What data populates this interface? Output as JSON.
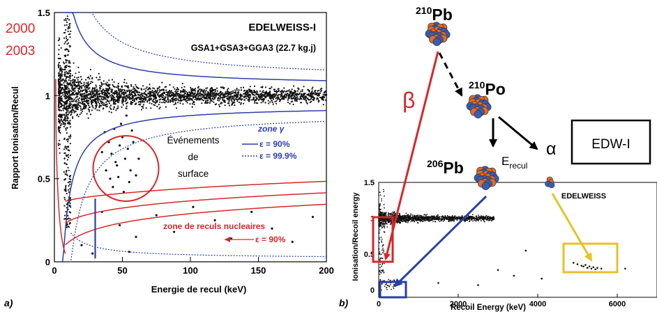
{
  "panel_labels": {
    "a": "a)",
    "b": "b)"
  },
  "colors": {
    "red": "#d62728",
    "blue": "#2b3fa8",
    "yellow": "#e6c229",
    "nucleus_orange": "#e06a2c",
    "nucleus_blue": "#3b5cb0"
  },
  "chart_data": [
    {
      "type": "scatter",
      "title": "EDELWEISS-I",
      "subtitle": "GSA1+GSA3+GGA3 (22.7 kg.j)",
      "xlabel": "Energie de recul (keV)",
      "ylabel": "Rapport Ionisation/Recul",
      "xlim": [
        0,
        200
      ],
      "ylim": [
        0,
        1.5
      ],
      "x_ticks": [
        0,
        50,
        100,
        150,
        200
      ],
      "x_tick_labels": [
        "0",
        "50",
        "100",
        "150",
        "200"
      ],
      "y_ticks": [
        0,
        0.5,
        1,
        1.5
      ],
      "y_tick_labels": [
        "0",
        "0.5",
        "1",
        "1.5"
      ],
      "years": [
        "2000",
        "2003"
      ],
      "legend": {
        "gamma_title": "zone γ",
        "gamma_90": "ε = 90%",
        "gamma_999": "ε = 99.9%",
        "nuclear_title": "zone de reculs nucleaires",
        "nuclear_90": "ε = 90%"
      },
      "annotation": {
        "lines": [
          "Événements",
          "de",
          "surface"
        ],
        "circle_center": [
          50,
          0.62
        ]
      },
      "threshold_keV": 30,
      "surface_events": [
        [
          40,
          0.72
        ],
        [
          42,
          0.65
        ],
        [
          44,
          0.8
        ],
        [
          46,
          0.58
        ],
        [
          48,
          0.7
        ],
        [
          50,
          0.75
        ],
        [
          52,
          0.62
        ],
        [
          54,
          0.68
        ],
        [
          56,
          0.55
        ],
        [
          58,
          0.72
        ],
        [
          45,
          0.6
        ],
        [
          38,
          0.55
        ],
        [
          41,
          0.5
        ],
        [
          55,
          0.48
        ],
        [
          60,
          0.52
        ],
        [
          62,
          0.62
        ],
        [
          35,
          0.66
        ],
        [
          37,
          0.78
        ],
        [
          49,
          0.83
        ],
        [
          53,
          0.88
        ],
        [
          57,
          0.79
        ],
        [
          43,
          0.45
        ],
        [
          51,
          0.42
        ],
        [
          47,
          0.51
        ]
      ],
      "nuclear_zone_events": [
        [
          20,
          0.1
        ],
        [
          35,
          0.3
        ],
        [
          48,
          0.22
        ],
        [
          60,
          0.15
        ],
        [
          75,
          0.28
        ],
        [
          88,
          0.18
        ],
        [
          102,
          0.33
        ],
        [
          118,
          0.25
        ],
        [
          130,
          0.14
        ],
        [
          145,
          0.3
        ],
        [
          160,
          0.2
        ],
        [
          175,
          0.12
        ],
        [
          190,
          0.27
        ],
        [
          28,
          0.05
        ],
        [
          55,
          0.06
        ]
      ]
    },
    {
      "type": "scatter",
      "title": "EDELWEISS",
      "xlabel": "Recoil Energy (keV)",
      "ylabel": "Ionisation/Recoil energy",
      "xlim": [
        0,
        7000
      ],
      "ylim": [
        -0.1,
        1.5
      ],
      "x_ticks": [
        0,
        2000,
        4000,
        6000
      ],
      "x_tick_labels": [
        "0",
        "2000",
        "4000",
        "6000"
      ],
      "y_ticks": [
        0,
        0.5,
        1,
        1.5
      ],
      "y_tick_labels": [
        "0",
        "0.5",
        "1",
        "1.5"
      ],
      "alpha_events": [
        [
          5000,
          0.36
        ],
        [
          5100,
          0.34
        ],
        [
          5200,
          0.35
        ],
        [
          5250,
          0.31
        ],
        [
          5300,
          0.33
        ],
        [
          5350,
          0.3
        ],
        [
          5400,
          0.32
        ],
        [
          5450,
          0.29
        ],
        [
          5500,
          0.31
        ],
        [
          4900,
          0.38
        ],
        [
          5600,
          0.3
        ],
        [
          5150,
          0.33
        ]
      ],
      "stray_events": [
        [
          3000,
          0.28
        ],
        [
          3400,
          0.2
        ],
        [
          4100,
          0.16
        ],
        [
          6200,
          0.3
        ],
        [
          3700,
          0.55
        ],
        [
          1500,
          0.1
        ],
        [
          2500,
          0.07
        ]
      ]
    }
  ],
  "decay_chain": {
    "pb210": {
      "mass": "210",
      "symbol": "Pb"
    },
    "po210": {
      "mass": "210",
      "symbol": "Po"
    },
    "pb206": {
      "mass": "206",
      "symbol": "Pb"
    },
    "beta": "β",
    "alpha": "α",
    "erecul": {
      "main": "E",
      "sub": "recul"
    },
    "box_label": "EDW-I"
  }
}
